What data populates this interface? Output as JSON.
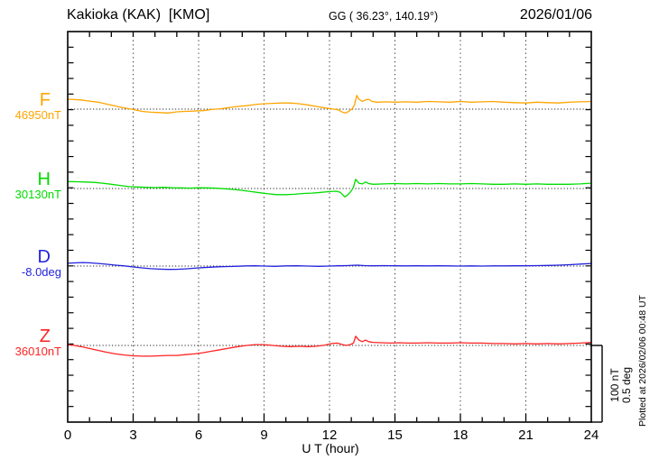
{
  "header": {
    "station_title": "Kakioka (KAK)  [KMO]",
    "coordinates": "GG ( 36.23°, 140.19°)",
    "date": "2026/01/06"
  },
  "footer": {
    "xaxis_label": "U T (hour)"
  },
  "scale_bar": {
    "text": "100 nT\n0.5 deg",
    "line1": "100 nT",
    "line2": "0.5 deg"
  },
  "plotted_at": "Plotted at 2026/02/06 00:48 UT",
  "chart_data": {
    "type": "line",
    "title": "Kakioka (KAK) [KMO] magnetogram 2026/01/06",
    "xlabel": "U T (hour)",
    "xlim": [
      0,
      24
    ],
    "x_ticks": [
      0,
      3,
      6,
      9,
      12,
      15,
      18,
      21,
      24
    ],
    "x_tick_step": 3,
    "x_minor_tick_step": 1,
    "grid": "dotted vertical gridlines every 3 hours; dotted horizontal baseline per component",
    "legend_position": "left margin, one label per stacked trace",
    "scale": {
      "nT_per_division": 100,
      "deg_per_division": 0.5
    },
    "series": [
      {
        "id": "F",
        "label": "F",
        "baseline_label": "46950nT",
        "baseline_value": 46950,
        "unit": "nT",
        "color": "#FFA500",
        "points": [
          [
            0,
            13
          ],
          [
            0.3,
            12.5
          ],
          [
            0.6,
            12
          ],
          [
            1,
            10.5
          ],
          [
            1.4,
            9
          ],
          [
            1.8,
            6.5
          ],
          [
            2.2,
            4
          ],
          [
            2.6,
            1.5
          ],
          [
            3,
            -0.5
          ],
          [
            3.4,
            -3
          ],
          [
            3.8,
            -4
          ],
          [
            4.2,
            -4.5
          ],
          [
            4.6,
            -5
          ],
          [
            5,
            -3.5
          ],
          [
            5.4,
            -3
          ],
          [
            5.8,
            -2.5
          ],
          [
            6.2,
            -2
          ],
          [
            6.6,
            -0.5
          ],
          [
            7,
            0.5
          ],
          [
            7.4,
            2
          ],
          [
            7.8,
            3.5
          ],
          [
            8.2,
            4.5
          ],
          [
            8.6,
            6
          ],
          [
            9,
            7
          ],
          [
            9.4,
            7.5
          ],
          [
            9.8,
            8
          ],
          [
            10.2,
            8
          ],
          [
            10.6,
            7
          ],
          [
            11,
            5.5
          ],
          [
            11.4,
            3.5
          ],
          [
            11.8,
            1.5
          ],
          [
            12.1,
            0.5
          ],
          [
            12.4,
            -1
          ],
          [
            12.6,
            -4
          ],
          [
            12.75,
            -5
          ],
          [
            12.9,
            -2.5
          ],
          [
            13.05,
            1
          ],
          [
            13.15,
            6
          ],
          [
            13.25,
            18
          ],
          [
            13.35,
            13
          ],
          [
            13.5,
            10
          ],
          [
            13.65,
            12
          ],
          [
            13.8,
            13
          ],
          [
            13.95,
            10
          ],
          [
            14.2,
            9
          ],
          [
            14.6,
            9.5
          ],
          [
            15,
            9
          ],
          [
            15.5,
            9.5
          ],
          [
            16,
            9
          ],
          [
            16.5,
            10
          ],
          [
            17,
            9.5
          ],
          [
            17.5,
            9
          ],
          [
            18,
            10
          ],
          [
            18.5,
            9
          ],
          [
            19,
            9.5
          ],
          [
            19.5,
            10
          ],
          [
            20,
            9
          ],
          [
            20.5,
            8.5
          ],
          [
            21,
            8
          ],
          [
            21.5,
            9
          ],
          [
            22,
            8.5
          ],
          [
            22.5,
            8
          ],
          [
            23,
            9
          ],
          [
            23.5,
            9.5
          ],
          [
            24,
            10
          ]
        ]
      },
      {
        "id": "H",
        "label": "H",
        "baseline_label": "30130nT",
        "baseline_value": 30130,
        "unit": "nT",
        "color": "#00DD00",
        "points": [
          [
            0,
            9
          ],
          [
            0.4,
            8.8
          ],
          [
            0.8,
            8.5
          ],
          [
            1.2,
            8
          ],
          [
            1.6,
            7
          ],
          [
            2,
            5.5
          ],
          [
            2.4,
            4
          ],
          [
            2.8,
            2.5
          ],
          [
            3.2,
            2
          ],
          [
            3.6,
            1.5
          ],
          [
            4,
            1.2
          ],
          [
            4.4,
            1.5
          ],
          [
            4.8,
            1
          ],
          [
            5.2,
            0.8
          ],
          [
            5.6,
            0.5
          ],
          [
            6,
            1
          ],
          [
            6.4,
            0.8
          ],
          [
            6.8,
            0.3
          ],
          [
            7.2,
            -0.3
          ],
          [
            7.6,
            -1.2
          ],
          [
            8,
            -2.5
          ],
          [
            8.4,
            -4
          ],
          [
            8.8,
            -5.5
          ],
          [
            9.2,
            -7
          ],
          [
            9.6,
            -8
          ],
          [
            10,
            -8
          ],
          [
            10.4,
            -7.5
          ],
          [
            10.8,
            -6.5
          ],
          [
            11.2,
            -6
          ],
          [
            11.6,
            -5
          ],
          [
            12,
            -4
          ],
          [
            12.3,
            -3.5
          ],
          [
            12.5,
            -5
          ],
          [
            12.7,
            -11
          ],
          [
            12.85,
            -8
          ],
          [
            13,
            -3
          ],
          [
            13.1,
            2
          ],
          [
            13.2,
            12
          ],
          [
            13.35,
            7
          ],
          [
            13.5,
            6
          ],
          [
            13.65,
            8.5
          ],
          [
            13.8,
            6.5
          ],
          [
            14,
            5.5
          ],
          [
            14.5,
            6
          ],
          [
            15,
            6.5
          ],
          [
            15.5,
            6
          ],
          [
            16,
            6.5
          ],
          [
            16.5,
            6
          ],
          [
            17,
            6.5
          ],
          [
            17.5,
            6
          ],
          [
            18,
            6
          ],
          [
            18.5,
            6.5
          ],
          [
            19,
            6
          ],
          [
            19.5,
            5.5
          ],
          [
            20,
            5.5
          ],
          [
            20.5,
            6
          ],
          [
            21,
            5.5
          ],
          [
            21.5,
            6
          ],
          [
            22,
            5.5
          ],
          [
            22.5,
            5.5
          ],
          [
            23,
            5.5
          ],
          [
            23.5,
            6
          ],
          [
            24,
            7
          ]
        ]
      },
      {
        "id": "D",
        "label": "D",
        "baseline_label": "-8.0deg",
        "baseline_value": -8.0,
        "unit": "deg",
        "color": "#2222DD",
        "points": [
          [
            0,
            0.018
          ],
          [
            0.4,
            0.021
          ],
          [
            0.7,
            0.023
          ],
          [
            1,
            0.021
          ],
          [
            1.4,
            0.017
          ],
          [
            1.8,
            0.012
          ],
          [
            2.2,
            0.006
          ],
          [
            2.6,
            0.001
          ],
          [
            3,
            -0.006
          ],
          [
            3.4,
            -0.012
          ],
          [
            3.8,
            -0.017
          ],
          [
            4.2,
            -0.02
          ],
          [
            4.6,
            -0.022
          ],
          [
            5,
            -0.021
          ],
          [
            5.4,
            -0.018
          ],
          [
            5.8,
            -0.014
          ],
          [
            6.2,
            -0.01
          ],
          [
            6.6,
            -0.007
          ],
          [
            7,
            -0.004
          ],
          [
            7.4,
            -0.003
          ],
          [
            7.8,
            -0.001
          ],
          [
            8.2,
            0.001
          ],
          [
            8.6,
            0.002
          ],
          [
            9,
            0
          ],
          [
            9.5,
            -0.002
          ],
          [
            10,
            0.001
          ],
          [
            10.5,
            0.002
          ],
          [
            11,
            0
          ],
          [
            11.5,
            -0.002
          ],
          [
            12,
            0
          ],
          [
            12.4,
            0.002
          ],
          [
            12.8,
            0.003
          ],
          [
            13.1,
            0.005
          ],
          [
            13.3,
            0.006
          ],
          [
            13.6,
            0.003
          ],
          [
            14,
            0.002
          ],
          [
            14.5,
            0.003
          ],
          [
            15,
            0.002
          ],
          [
            15.5,
            0.001
          ],
          [
            16,
            0.002
          ],
          [
            16.5,
            0.001
          ],
          [
            17,
            0.002
          ],
          [
            17.5,
            0.001
          ],
          [
            18,
            0
          ],
          [
            18.5,
            0.001
          ],
          [
            19,
            0
          ],
          [
            19.5,
            0.001
          ],
          [
            20,
            0.001
          ],
          [
            20.5,
            0.002
          ],
          [
            21,
            0.002
          ],
          [
            21.5,
            0.003
          ],
          [
            22,
            0.004
          ],
          [
            22.5,
            0.006
          ],
          [
            23,
            0.009
          ],
          [
            23.5,
            0.013
          ],
          [
            24,
            0.017
          ]
        ]
      },
      {
        "id": "Z",
        "label": "Z",
        "baseline_label": "36010nT",
        "baseline_value": 36010,
        "unit": "nT",
        "color": "#FF2222",
        "points": [
          [
            0,
            1
          ],
          [
            0.3,
            0
          ],
          [
            0.6,
            -1.5
          ],
          [
            1,
            -4
          ],
          [
            1.4,
            -6.5
          ],
          [
            1.8,
            -9
          ],
          [
            2.2,
            -11
          ],
          [
            2.6,
            -12.5
          ],
          [
            3,
            -13.5
          ],
          [
            3.4,
            -14
          ],
          [
            3.8,
            -14
          ],
          [
            4.2,
            -13.5
          ],
          [
            4.6,
            -13
          ],
          [
            5,
            -13
          ],
          [
            5.4,
            -12
          ],
          [
            5.8,
            -11
          ],
          [
            6.2,
            -9.5
          ],
          [
            6.6,
            -7.5
          ],
          [
            7,
            -5.5
          ],
          [
            7.4,
            -3.5
          ],
          [
            7.8,
            -1.5
          ],
          [
            8.2,
            0
          ],
          [
            8.6,
            1
          ],
          [
            9,
            1
          ],
          [
            9.4,
            0
          ],
          [
            9.8,
            -1
          ],
          [
            10.2,
            -1.5
          ],
          [
            10.6,
            -1
          ],
          [
            11,
            -1.5
          ],
          [
            11.4,
            -1
          ],
          [
            11.8,
            0.5
          ],
          [
            12.1,
            2.5
          ],
          [
            12.35,
            3
          ],
          [
            12.55,
            1.5
          ],
          [
            12.75,
            0
          ],
          [
            12.95,
            1
          ],
          [
            13.1,
            3
          ],
          [
            13.2,
            12
          ],
          [
            13.35,
            7
          ],
          [
            13.5,
            5
          ],
          [
            13.65,
            7
          ],
          [
            13.8,
            5
          ],
          [
            14,
            4
          ],
          [
            14.4,
            3.5
          ],
          [
            14.8,
            3
          ],
          [
            15.2,
            3.5
          ],
          [
            15.6,
            3
          ],
          [
            16,
            3
          ],
          [
            16.5,
            3.5
          ],
          [
            17,
            3
          ],
          [
            17.5,
            3
          ],
          [
            18,
            3.5
          ],
          [
            18.5,
            3
          ],
          [
            19,
            3
          ],
          [
            19.5,
            2.5
          ],
          [
            20,
            2.5
          ],
          [
            20.5,
            2
          ],
          [
            21,
            2.5
          ],
          [
            21.5,
            2
          ],
          [
            22,
            2.5
          ],
          [
            22.5,
            2
          ],
          [
            23,
            2.5
          ],
          [
            23.5,
            3
          ],
          [
            24,
            4
          ]
        ]
      }
    ]
  },
  "colors": {
    "frame": "#000000",
    "grid": "#333333",
    "baseline_dots": "#222222",
    "background": "#ffffff",
    "f_trace": "#FFA500",
    "h_trace": "#00DD00",
    "d_trace": "#2222DD",
    "z_trace": "#FF2222"
  }
}
